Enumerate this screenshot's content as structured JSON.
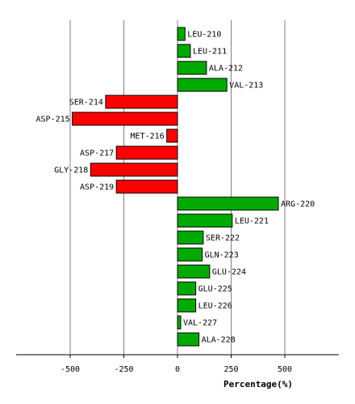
{
  "chart_data": {
    "type": "bar",
    "orientation": "horizontal",
    "categories": [
      "LEU-210",
      "LEU-211",
      "ALA-212",
      "VAL-213",
      "SER-214",
      "ASP-215",
      "MET-216",
      "ASP-217",
      "GLY-218",
      "ASP-219",
      "ARG-220",
      "LEU-221",
      "SER-222",
      "GLN-223",
      "GLU-224",
      "GLU-225",
      "LEU-226",
      "VAL-227",
      "ALA-228"
    ],
    "values": [
      35,
      60,
      135,
      230,
      -335,
      -490,
      -50,
      -285,
      -405,
      -285,
      470,
      255,
      120,
      115,
      150,
      85,
      85,
      15,
      100
    ],
    "xlabel": "Percentage(%)",
    "ylabel": "",
    "xlim": [
      -750,
      750
    ],
    "xticks": [
      -500,
      -250,
      0,
      250,
      500
    ],
    "xtick_labels": [
      "-500",
      "-250",
      "0",
      "250",
      "500"
    ],
    "grid": true,
    "colors": {
      "positive": "#00aa00",
      "negative": "#ff0000",
      "outline": "#000000",
      "grid": "#808080"
    }
  }
}
